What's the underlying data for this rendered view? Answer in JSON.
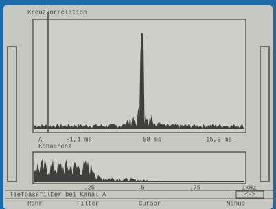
{
  "screen": {
    "top_plot": {
      "title": "Kreuzkorrelation",
      "marker": "A",
      "axis_labels": [
        "-1,1 ms",
        "58 ms",
        "15,9 ms"
      ]
    },
    "bottom_plot": {
      "title": "Kohaerenz",
      "axis_labels": [
        ".25",
        ".5",
        ".75",
        "1kHz"
      ]
    },
    "status": {
      "text": "Tiefpassfilter bei Kanal A",
      "indicator": "<->"
    },
    "menu": [
      "Rohr",
      "Filter",
      "Cursor",
      "Menue"
    ]
  }
}
